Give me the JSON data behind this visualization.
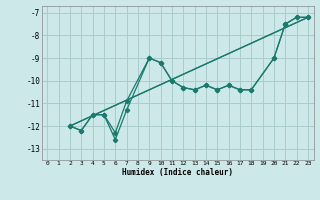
{
  "xlabel": "Humidex (Indice chaleur)",
  "bg_color": "#cce8e8",
  "grid_color": "#aacccc",
  "line_color": "#1a7a6e",
  "xlim": [
    -0.5,
    23.5
  ],
  "ylim": [
    -13.5,
    -6.7
  ],
  "yticks": [
    -13,
    -12,
    -11,
    -10,
    -9,
    -8,
    -7
  ],
  "xticks": [
    0,
    1,
    2,
    3,
    4,
    5,
    6,
    7,
    8,
    9,
    10,
    11,
    12,
    13,
    14,
    15,
    16,
    17,
    18,
    19,
    20,
    21,
    22,
    23
  ],
  "series": [
    {
      "x": [
        2,
        3,
        4,
        5,
        6,
        7,
        9,
        10,
        11,
        12,
        13,
        14,
        15,
        16,
        17,
        18,
        20,
        21,
        22,
        23
      ],
      "y": [
        -12.0,
        -12.2,
        -11.5,
        -11.5,
        -12.3,
        -10.9,
        -9.0,
        -9.2,
        -10.0,
        -10.3,
        -10.4,
        -10.2,
        -10.4,
        -10.2,
        -10.4,
        -10.4,
        -9.0,
        -7.5,
        -7.2,
        -7.2
      ],
      "markers": true
    },
    {
      "x": [
        2,
        3,
        4,
        5,
        6,
        7,
        9,
        10,
        11,
        12,
        13,
        14,
        15,
        16,
        17,
        18,
        20,
        21,
        22,
        23
      ],
      "y": [
        -12.0,
        -12.2,
        -11.5,
        -11.5,
        -12.6,
        -11.3,
        -9.0,
        -9.2,
        -10.0,
        -10.3,
        -10.4,
        -10.2,
        -10.4,
        -10.2,
        -10.4,
        -10.4,
        -9.0,
        -7.5,
        -7.2,
        -7.2
      ],
      "markers": true
    },
    {
      "x": [
        2,
        23
      ],
      "y": [
        -12.0,
        -7.2
      ],
      "markers": false
    },
    {
      "x": [
        2,
        23
      ],
      "y": [
        -12.0,
        -7.2
      ],
      "markers": false
    }
  ]
}
